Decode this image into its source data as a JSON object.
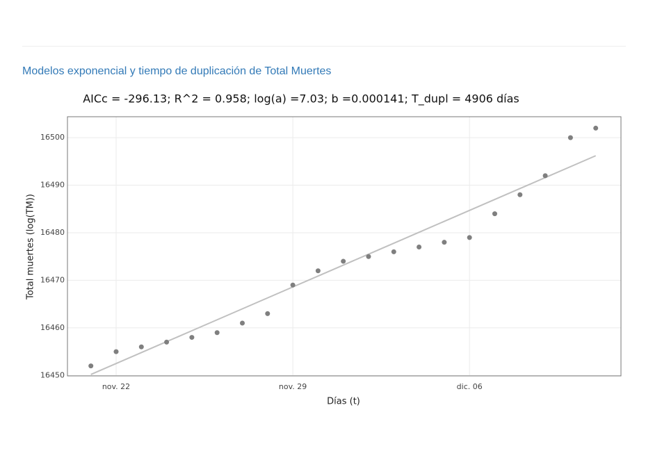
{
  "header": {
    "title": "Modelos exponencial y tiempo de duplicación de Total Muertes"
  },
  "chart_data": {
    "type": "scatter",
    "title": "AICc = -296.13; R^2 = 0.958; log(a) =7.03; b =0.000141; T_dupl = 4906 días",
    "x_label": "Días (t)",
    "y_label": "Total muertes (log(TM))",
    "categories": [
      null,
      "nov. 22",
      null,
      null,
      null,
      null,
      null,
      null,
      "nov. 29",
      null,
      null,
      null,
      null,
      null,
      null,
      "dic. 06",
      null,
      null,
      null,
      null,
      null
    ],
    "series": [
      {
        "mode": "markers",
        "color": "#7f7f7f",
        "values": [
          16452,
          16455,
          16456,
          16457,
          16458,
          16459,
          16461,
          16463,
          16469,
          16472,
          16474,
          16475,
          16476,
          16477,
          16478,
          16479,
          16484,
          16488,
          16492,
          16500,
          16502
        ]
      },
      {
        "mode": "lines",
        "color": "#c0c0c0",
        "values": [
          16450.2,
          16452.5,
          16454.8,
          16457.1,
          16459.4,
          16461.7,
          16464.0,
          16466.3,
          16468.6,
          16470.9,
          16473.2,
          16475.5,
          16477.8,
          16480.1,
          16482.4,
          16484.7,
          16487.0,
          16489.3,
          16491.6,
          16493.9,
          16496.2
        ]
      }
    ],
    "ylim": [
      16449.9,
      16504.4
    ],
    "yticks": [
      16450,
      16460,
      16470,
      16480,
      16490,
      16500
    ],
    "grid": true
  }
}
